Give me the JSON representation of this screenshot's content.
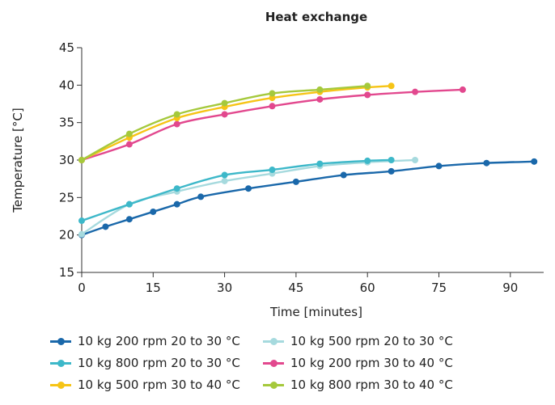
{
  "chart_data": {
    "type": "line",
    "title": "Heat exchange",
    "xlabel": "Time [minutes]",
    "ylabel": "Temperature [°C]",
    "xlim": [
      0,
      97
    ],
    "ylim": [
      15,
      45
    ],
    "xticks": [
      0,
      15,
      30,
      45,
      60,
      75,
      90
    ],
    "yticks": [
      15,
      20,
      25,
      30,
      35,
      40,
      45
    ],
    "grid": false,
    "legend_position": "bottom",
    "series": [
      {
        "name": "10 kg 200 rpm 20 to 30 °C",
        "color": "#1a68aa",
        "x": [
          0,
          5,
          10,
          15,
          20,
          25,
          35,
          45,
          55,
          65,
          75,
          85,
          95
        ],
        "y": [
          20,
          21.1,
          22.1,
          23.1,
          24.1,
          25.1,
          26.2,
          27.1,
          28.0,
          28.5,
          29.2,
          29.6,
          29.8
        ]
      },
      {
        "name": "10 kg 500 rpm 20 to 30 °C",
        "color": "#a6dade",
        "x": [
          0,
          10,
          20,
          30,
          40,
          50,
          60,
          70
        ],
        "y": [
          20.1,
          24.1,
          25.8,
          27.2,
          28.2,
          29.2,
          29.7,
          30.0
        ]
      },
      {
        "name": "10 kg 800 rpm 20 to 30 °C",
        "color": "#3db8c9",
        "x": [
          0,
          10,
          20,
          30,
          40,
          50,
          60,
          65
        ],
        "y": [
          21.9,
          24.1,
          26.2,
          28.0,
          28.7,
          29.5,
          29.9,
          30.0
        ]
      },
      {
        "name": "10 kg 200 rpm 30 to 40 °C",
        "color": "#e2488e",
        "x": [
          0,
          10,
          20,
          30,
          40,
          50,
          60,
          70,
          80
        ],
        "y": [
          30,
          32.1,
          34.8,
          36.1,
          37.2,
          38.1,
          38.7,
          39.1,
          39.4
        ]
      },
      {
        "name": "10 kg 500 rpm 30 to 40 °C",
        "color": "#f6c416",
        "x": [
          0,
          10,
          20,
          30,
          40,
          50,
          60,
          65
        ],
        "y": [
          30,
          33.0,
          35.6,
          37.1,
          38.3,
          39.1,
          39.7,
          39.9
        ]
      },
      {
        "name": "10 kg 800 rpm 30 to 40 °C",
        "color": "#a5c93c",
        "x": [
          0,
          10,
          20,
          30,
          40,
          50,
          60
        ],
        "y": [
          30,
          33.5,
          36.1,
          37.6,
          38.9,
          39.4,
          39.9
        ]
      }
    ]
  },
  "legend_order": [
    0,
    1,
    2,
    3,
    4,
    5
  ]
}
